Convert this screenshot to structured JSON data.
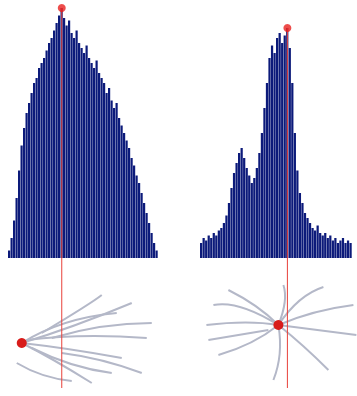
{
  "chart_data": [
    {
      "type": "histogram",
      "bins": [
        0,
        1,
        2,
        3,
        4,
        5,
        6,
        7,
        8,
        9,
        10,
        11,
        12,
        13,
        14,
        15,
        16,
        17,
        18,
        19,
        20,
        21,
        22,
        23,
        24,
        25,
        26,
        27,
        28,
        29,
        30,
        31,
        32,
        33,
        34,
        35,
        36,
        37,
        38,
        39,
        40,
        41,
        42,
        43,
        44,
        45,
        46,
        47,
        48,
        49,
        50,
        51,
        52,
        53,
        54,
        55,
        56,
        57,
        58,
        59,
        60
      ],
      "counts": [
        3,
        8,
        15,
        24,
        35,
        45,
        52,
        58,
        62,
        66,
        70,
        72,
        76,
        78,
        80,
        83,
        86,
        88,
        91,
        94,
        97,
        100,
        96,
        93,
        95,
        90,
        88,
        91,
        86,
        84,
        82,
        85,
        80,
        78,
        76,
        79,
        74,
        72,
        70,
        66,
        68,
        63,
        60,
        62,
        56,
        53,
        50,
        47,
        44,
        40,
        37,
        33,
        30,
        26,
        22,
        18,
        14,
        10,
        6,
        3
      ],
      "color": "#0c1a7a",
      "xlim": [
        0,
        60
      ],
      "ylim": [
        0,
        100
      ],
      "tick_labels": false,
      "marker": "circle"
    },
    {
      "type": "histogram",
      "bins": [
        0,
        1,
        2,
        3,
        4,
        5,
        6,
        7,
        8,
        9,
        10,
        11,
        12,
        13,
        14,
        15,
        16,
        17,
        18,
        19,
        20,
        21,
        22,
        23,
        24,
        25,
        26,
        27,
        28,
        29,
        30,
        31,
        32,
        33,
        34,
        35,
        36,
        37,
        38,
        39,
        40,
        41,
        42,
        43,
        44,
        45,
        46,
        47,
        48,
        49,
        50,
        51,
        52,
        53,
        54,
        55,
        56,
        57,
        58,
        59,
        60
      ],
      "counts": [
        6,
        8,
        7,
        9,
        8,
        10,
        9,
        11,
        12,
        14,
        17,
        22,
        28,
        34,
        38,
        42,
        44,
        40,
        36,
        33,
        30,
        32,
        36,
        42,
        50,
        60,
        70,
        80,
        85,
        82,
        88,
        90,
        86,
        89,
        92,
        84,
        70,
        50,
        35,
        26,
        22,
        18,
        16,
        14,
        12,
        11,
        13,
        10,
        9,
        10,
        8,
        9,
        7,
        8,
        6,
        7,
        8,
        6,
        7,
        6
      ],
      "color": "#0c1a7a",
      "xlim": [
        0,
        60
      ],
      "ylim": [
        0,
        100
      ],
      "tick_labels": false,
      "marker": "circle"
    }
  ]
}
